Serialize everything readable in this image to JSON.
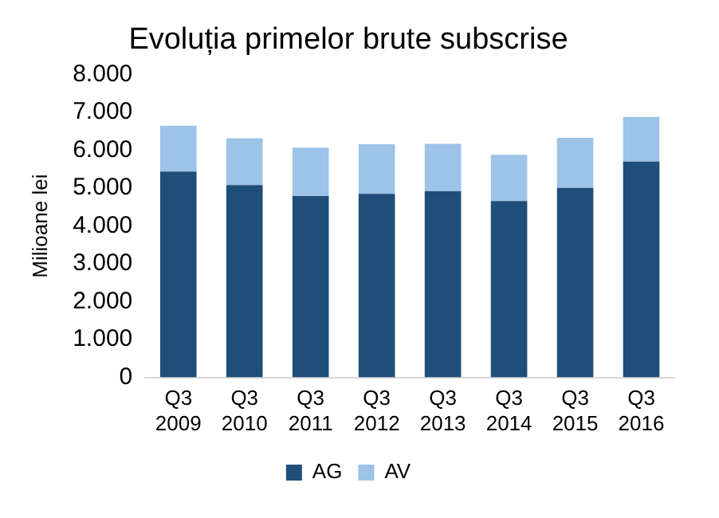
{
  "chart_data": {
    "type": "bar",
    "title": "Evoluția primelor brute subscrise",
    "ylabel": "Milioane lei",
    "stacked": true,
    "legend": "bottom",
    "grid": false,
    "categories": [
      "Q3\n2009",
      "Q3\n2010",
      "Q3\n2011",
      "Q3\n2012",
      "Q3\n2013",
      "Q3\n2014",
      "Q3\n2015",
      "Q3\n2016"
    ],
    "series": [
      {
        "name": "AG",
        "color": "#1f4e79",
        "values": [
          5440,
          5080,
          4790,
          4850,
          4920,
          4660,
          5010,
          5700
        ]
      },
      {
        "name": "AV",
        "color": "#9dc3e6",
        "values": [
          1210,
          1240,
          1280,
          1310,
          1250,
          1220,
          1320,
          1180
        ]
      }
    ],
    "ylim": [
      0,
      8000
    ],
    "yticks": [
      0,
      {
        "value": 1000,
        "label": "1.000"
      },
      {
        "value": 2000,
        "label": "2.000"
      },
      {
        "value": 3000,
        "label": "3.000"
      },
      {
        "value": 4000,
        "label": "4.000"
      },
      {
        "value": 5000,
        "label": "5.000"
      },
      {
        "value": 6000,
        "label": "6.000"
      },
      {
        "value": 7000,
        "label": "7.000"
      },
      {
        "value": 8000,
        "label": "8.000"
      }
    ]
  }
}
